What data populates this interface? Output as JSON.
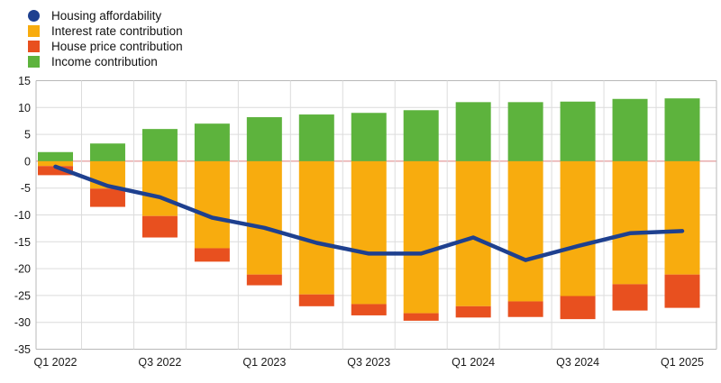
{
  "legend": {
    "items": [
      {
        "label": "Housing affordability",
        "marker": "circle",
        "color": "#1e408f"
      },
      {
        "label": "Interest rate contribution",
        "marker": "square",
        "color": "#f8ac0e"
      },
      {
        "label": "House price contribution",
        "marker": "square",
        "color": "#e8501f"
      },
      {
        "label": "Income contribution",
        "marker": "square",
        "color": "#5db33d"
      }
    ]
  },
  "chart_data": {
    "type": "bar",
    "subtype": "stacked-bars-with-line",
    "categories": [
      "Q1 2022",
      "Q2 2022",
      "Q3 2022",
      "Q4 2022",
      "Q1 2023",
      "Q2 2023",
      "Q3 2023",
      "Q4 2023",
      "Q1 2024",
      "Q2 2024",
      "Q3 2024",
      "Q4 2024",
      "Q1 2025"
    ],
    "x_tick_labels": [
      "Q1 2022",
      "Q3 2022",
      "Q1 2023",
      "Q3 2023",
      "Q1 2024",
      "Q3 2024",
      "Q1 2025"
    ],
    "x_tick_every": 2,
    "series": [
      {
        "name": "Housing affordability",
        "type": "line",
        "color": "#1e408f",
        "values": [
          -1.0,
          -4.6,
          -6.7,
          -10.5,
          -12.4,
          -15.2,
          -17.2,
          -17.2,
          -14.2,
          -18.4,
          -15.8,
          -13.4,
          -13.0
        ]
      },
      {
        "name": "Interest rate contribution",
        "type": "bar",
        "color": "#f8ac0e",
        "values": [
          -0.9,
          -5.1,
          -10.2,
          -16.2,
          -21.1,
          -24.8,
          -26.6,
          -28.3,
          -27.0,
          -26.1,
          -25.1,
          -22.9,
          -21.1
        ]
      },
      {
        "name": "House price contribution",
        "type": "bar",
        "color": "#e8501f",
        "values": [
          -1.7,
          -3.4,
          -4.0,
          -2.5,
          -2.0,
          -2.2,
          -2.1,
          -1.4,
          -2.1,
          -2.9,
          -4.3,
          -4.9,
          -6.2
        ]
      },
      {
        "name": "Income contribution",
        "type": "bar",
        "color": "#5db33d",
        "values": [
          1.7,
          3.3,
          6.0,
          7.0,
          8.2,
          8.7,
          9.0,
          9.5,
          11.0,
          11.0,
          11.1,
          11.6,
          11.7
        ]
      }
    ],
    "title": "",
    "xlabel": "",
    "ylabel": "",
    "ylim": [
      -35,
      15
    ],
    "y_ticks": [
      15,
      10,
      5,
      0,
      -5,
      -10,
      -15,
      -20,
      -25,
      -30,
      -35
    ],
    "grid": true,
    "grid_color": "#dcdcdc",
    "border_color": "#b9b9b9",
    "zero_line_color": "#dd8080",
    "axis_text_color": "#1a1a1a",
    "legend_position": "top-left"
  }
}
